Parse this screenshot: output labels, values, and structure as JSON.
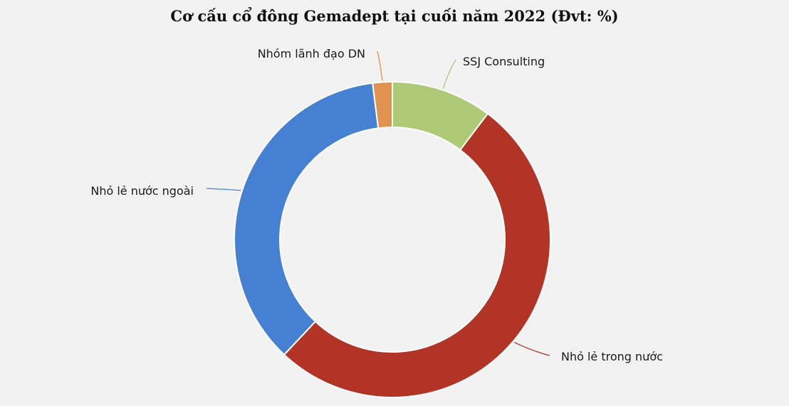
{
  "title": "Cơ cấu cổ đông Gemadept tại cuối năm 2022 (Đvt: %)",
  "chart_data": {
    "type": "pie",
    "donut": true,
    "title": "Cơ cấu cổ đông Gemadept tại cuối năm 2022 (Đvt: %)",
    "start_angle_deg": 0,
    "direction": "clockwise",
    "legend": "none",
    "labels_outside": true,
    "slices": [
      {
        "name": "SSJ Consulting",
        "value": 10.3,
        "color": "#afca76"
      },
      {
        "name": "Nhỏ lẻ trong nước",
        "value": 51.7,
        "color": "#b23427"
      },
      {
        "name": "Nhỏ lẻ nước ngoài",
        "value": 36.0,
        "color": "#4580d3"
      },
      {
        "name": "Nhóm lãnh đạo DN",
        "value": 2.0,
        "color": "#e2924f"
      }
    ]
  }
}
